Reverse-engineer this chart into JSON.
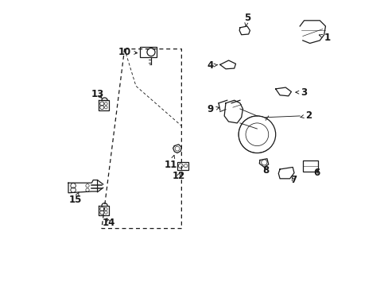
{
  "bg_color": "#ffffff",
  "fig_width": 4.89,
  "fig_height": 3.6,
  "dpi": 100,
  "line_color": "#1a1a1a",
  "label_fontsize": 8.5,
  "arrow_color": "#1a1a1a",
  "labels": [
    [
      1,
      0.945,
      0.865,
      0.945,
      0.865
    ],
    [
      2,
      0.895,
      0.595,
      0.895,
      0.595
    ],
    [
      3,
      0.87,
      0.68,
      0.87,
      0.68
    ],
    [
      4,
      0.565,
      0.77,
      0.565,
      0.77
    ],
    [
      5,
      0.68,
      0.93,
      0.68,
      0.93
    ],
    [
      6,
      0.92,
      0.4,
      0.92,
      0.4
    ],
    [
      7,
      0.84,
      0.38,
      0.84,
      0.38
    ],
    [
      8,
      0.745,
      0.415,
      0.745,
      0.415
    ],
    [
      9,
      0.57,
      0.615,
      0.57,
      0.615
    ],
    [
      10,
      0.265,
      0.81,
      0.265,
      0.81
    ],
    [
      11,
      0.43,
      0.43,
      0.43,
      0.43
    ],
    [
      12,
      0.45,
      0.355,
      0.45,
      0.355
    ],
    [
      13,
      0.165,
      0.66,
      0.165,
      0.66
    ],
    [
      14,
      0.2,
      0.175,
      0.2,
      0.175
    ],
    [
      15,
      0.08,
      0.295,
      0.08,
      0.295
    ]
  ]
}
